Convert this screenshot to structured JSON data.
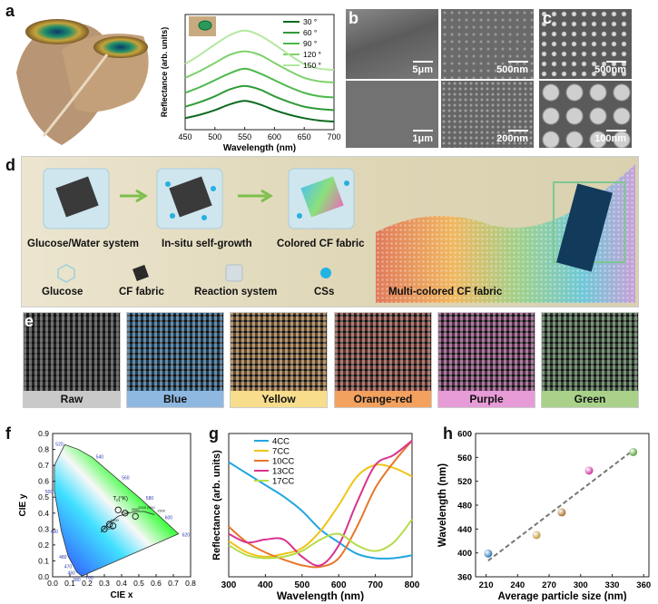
{
  "panels": {
    "a": {
      "label": "a"
    },
    "b": {
      "label": "b",
      "scales": [
        "5μm",
        "500nm",
        "1μm",
        "200nm"
      ]
    },
    "c": {
      "label": "c",
      "scales": [
        "500nm",
        "100nm"
      ]
    },
    "d": {
      "label": "d",
      "steps": [
        "Glucose/Water system",
        "In-situ self-growth",
        "Colored CF fabric"
      ],
      "legend": [
        "Glucose",
        "CF fabric",
        "Reaction system",
        "CSs"
      ],
      "multi": "Multi-colored CF fabric"
    },
    "e": {
      "label": "e",
      "fabrics": [
        "Raw",
        "Blue",
        "Yellow",
        "Orange-red",
        "Purple",
        "Green"
      ]
    },
    "f": {
      "label": "f"
    },
    "g": {
      "label": "g"
    },
    "h": {
      "label": "h"
    }
  },
  "colors": {
    "fabric_bars": [
      "#c9c9c9",
      "#8fb8e0",
      "#f7dd8c",
      "#f2a15f",
      "#e79bd7",
      "#a9d18a"
    ],
    "angles": [
      "#0d6b1f",
      "#2f9a35",
      "#4cb84a",
      "#7dd16c",
      "#b3e8a0"
    ],
    "cc": [
      "#21a6e0",
      "#f0c419",
      "#e8762a",
      "#d8338f",
      "#b6dc4a"
    ],
    "h_points": [
      "#2a78b8",
      "#c09a3a",
      "#a8702a",
      "#d0359a",
      "#5aa53a"
    ]
  },
  "chart_data": [
    {
      "id": "a-reflectance",
      "type": "line",
      "xlabel": "Wavelength (nm)",
      "ylabel": "Reflectance (arb. units)",
      "xlim": [
        450,
        700
      ],
      "xticks": [
        450,
        500,
        550,
        600,
        650,
        700
      ],
      "series": [
        {
          "name": "30 °",
          "x": [
            450,
            475,
            500,
            525,
            550,
            575,
            600,
            625,
            650,
            675,
            700
          ],
          "y": [
            0.1,
            0.13,
            0.17,
            0.22,
            0.25,
            0.22,
            0.17,
            0.13,
            0.1,
            0.08,
            0.07
          ]
        },
        {
          "name": "60 °",
          "x": [
            450,
            475,
            500,
            525,
            550,
            575,
            600,
            625,
            650,
            675,
            700
          ],
          "y": [
            0.2,
            0.24,
            0.29,
            0.35,
            0.38,
            0.35,
            0.29,
            0.24,
            0.2,
            0.18,
            0.17
          ]
        },
        {
          "name": "90 °",
          "x": [
            450,
            475,
            500,
            525,
            550,
            575,
            600,
            625,
            650,
            675,
            700
          ],
          "y": [
            0.32,
            0.37,
            0.43,
            0.49,
            0.53,
            0.49,
            0.43,
            0.37,
            0.32,
            0.29,
            0.28
          ]
        },
        {
          "name": "120 °",
          "x": [
            450,
            475,
            500,
            525,
            550,
            575,
            600,
            625,
            650,
            675,
            700
          ],
          "y": [
            0.45,
            0.51,
            0.58,
            0.65,
            0.68,
            0.65,
            0.58,
            0.51,
            0.45,
            0.42,
            0.41
          ]
        },
        {
          "name": "150 °",
          "x": [
            450,
            475,
            500,
            525,
            550,
            575,
            600,
            625,
            650,
            675,
            700
          ],
          "y": [
            0.57,
            0.65,
            0.74,
            0.82,
            0.86,
            0.82,
            0.74,
            0.65,
            0.57,
            0.53,
            0.52
          ]
        }
      ]
    },
    {
      "id": "f-cie",
      "type": "scatter",
      "xlabel": "CIE x",
      "ylabel": "CIE y",
      "xticks": [
        0.0,
        0.1,
        0.2,
        0.3,
        0.4,
        0.5,
        0.6,
        0.7,
        0.8
      ],
      "yticks": [
        0.0,
        0.1,
        0.2,
        0.3,
        0.4,
        0.5,
        0.6,
        0.7,
        0.8,
        0.9
      ],
      "wavelength_marks": [
        "380",
        "460",
        "470",
        "480",
        "490",
        "500",
        "520",
        "540",
        "560",
        "580",
        "600",
        "620",
        "700"
      ],
      "planck_label": "T",
      "planck_sub": "c",
      "planck_unit": "(°K)",
      "planck_temps": [
        "10000",
        "6000",
        "4000",
        "3000",
        "2500",
        "2000",
        "1500"
      ],
      "points": [
        [
          0.33,
          0.33
        ],
        [
          0.3,
          0.3
        ],
        [
          0.42,
          0.4
        ],
        [
          0.48,
          0.38
        ],
        [
          0.35,
          0.32
        ],
        [
          0.38,
          0.42
        ]
      ]
    },
    {
      "id": "g-reflectance",
      "type": "line",
      "xlabel": "Wavelength (nm)",
      "ylabel": "Reflectance (arb. units)",
      "xlim": [
        300,
        800
      ],
      "xticks": [
        300,
        400,
        500,
        600,
        700,
        800
      ],
      "series": [
        {
          "name": "4CC",
          "x": [
            300,
            350,
            400,
            450,
            500,
            550,
            600,
            650,
            700,
            750,
            800
          ],
          "y": [
            0.8,
            0.72,
            0.64,
            0.56,
            0.46,
            0.33,
            0.24,
            0.16,
            0.13,
            0.13,
            0.15
          ]
        },
        {
          "name": "7CC",
          "x": [
            300,
            350,
            400,
            450,
            500,
            550,
            600,
            650,
            700,
            750,
            800
          ],
          "y": [
            0.25,
            0.17,
            0.14,
            0.16,
            0.2,
            0.32,
            0.5,
            0.7,
            0.78,
            0.76,
            0.7
          ]
        },
        {
          "name": "10CC",
          "x": [
            300,
            350,
            400,
            450,
            500,
            550,
            600,
            650,
            700,
            750,
            800
          ],
          "y": [
            0.35,
            0.24,
            0.17,
            0.12,
            0.08,
            0.07,
            0.13,
            0.35,
            0.62,
            0.8,
            0.95
          ]
        },
        {
          "name": "13CC",
          "x": [
            300,
            350,
            400,
            450,
            500,
            550,
            600,
            650,
            700,
            750,
            800
          ],
          "y": [
            0.3,
            0.24,
            0.26,
            0.26,
            0.14,
            0.08,
            0.22,
            0.52,
            0.78,
            0.85,
            0.95
          ]
        },
        {
          "name": "17CC",
          "x": [
            300,
            350,
            400,
            450,
            500,
            550,
            600,
            650,
            700,
            750,
            800
          ],
          "y": [
            0.22,
            0.15,
            0.13,
            0.14,
            0.18,
            0.26,
            0.3,
            0.22,
            0.18,
            0.24,
            0.4
          ]
        }
      ]
    },
    {
      "id": "h-wavelength-size",
      "type": "scatter",
      "xlabel": "Average particle size (nm)",
      "ylabel": "Wavelength (nm)",
      "xlim": [
        200,
        365
      ],
      "ylim": [
        360,
        600
      ],
      "xticks": [
        210,
        240,
        270,
        300,
        330,
        360
      ],
      "yticks": [
        360,
        400,
        440,
        480,
        520,
        560,
        600
      ],
      "x": [
        212,
        258,
        282,
        308,
        350
      ],
      "y": [
        399,
        430,
        468,
        538,
        569
      ],
      "fit": [
        [
          212,
          387
        ],
        [
          350,
          572
        ]
      ]
    }
  ]
}
